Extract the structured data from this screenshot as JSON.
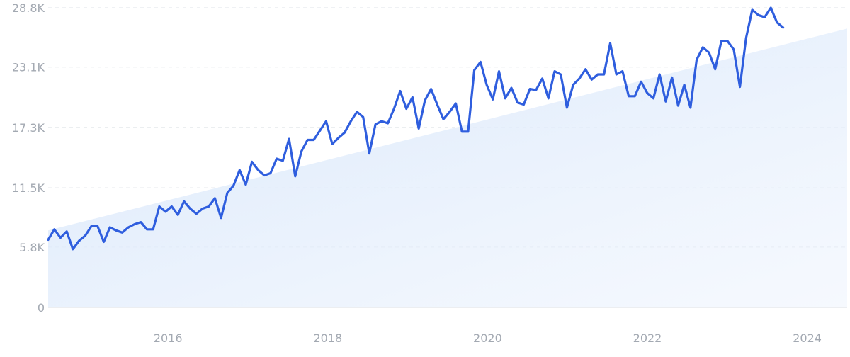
{
  "chart_data": {
    "type": "area",
    "title": "",
    "xlabel": "",
    "ylabel": "",
    "y_ticks": [
      "0",
      "5.8K",
      "11.5K",
      "17.3K",
      "23.1K",
      "28.8K"
    ],
    "y_tick_values": [
      0,
      5800,
      11500,
      17300,
      23100,
      28800
    ],
    "x_ticks": [
      "2016",
      "2018",
      "2020",
      "2022",
      "2024"
    ],
    "x_tick_values": [
      2016,
      2018,
      2020,
      2022,
      2024
    ],
    "xlim": [
      2014.5,
      2024.5
    ],
    "ylim": [
      0,
      28800
    ],
    "grid": true,
    "trend": {
      "start": 7400,
      "end": 26800
    },
    "series": [
      {
        "color": "#2f5ede",
        "fill_color": "#dfeafc",
        "x_start": 2014.5,
        "x_step": 0.0773,
        "values": [
          6500,
          7500,
          6700,
          7300,
          5600,
          6400,
          6900,
          7800,
          7800,
          6300,
          7700,
          7400,
          7200,
          7700,
          8000,
          8200,
          7500,
          7500,
          9700,
          9200,
          9700,
          8900,
          10200,
          9500,
          9000,
          9500,
          9700,
          10500,
          8600,
          11000,
          11700,
          13200,
          11800,
          14000,
          13200,
          12700,
          12900,
          14300,
          14100,
          16200,
          12600,
          15000,
          16100,
          16100,
          17000,
          17900,
          15700,
          16300,
          16800,
          17900,
          18800,
          18300,
          14800,
          17600,
          17900,
          17700,
          19100,
          20800,
          19100,
          20200,
          17200,
          19900,
          21000,
          19500,
          18100,
          18800,
          19600,
          16900,
          16900,
          22800,
          23600,
          21400,
          20000,
          22700,
          20100,
          21100,
          19700,
          19500,
          21000,
          20900,
          22000,
          20100,
          22700,
          22400,
          19200,
          21400,
          22000,
          22900,
          21900,
          22400,
          22400,
          25400,
          22400,
          22700,
          20300,
          20300,
          21700,
          20600,
          20100,
          22400,
          19800,
          22100,
          19400,
          21400,
          19200,
          23800,
          25000,
          24500,
          22900,
          25600,
          25600,
          24800,
          21200,
          25900,
          28600,
          28100,
          27900,
          28800,
          27400,
          26900
        ]
      }
    ]
  }
}
